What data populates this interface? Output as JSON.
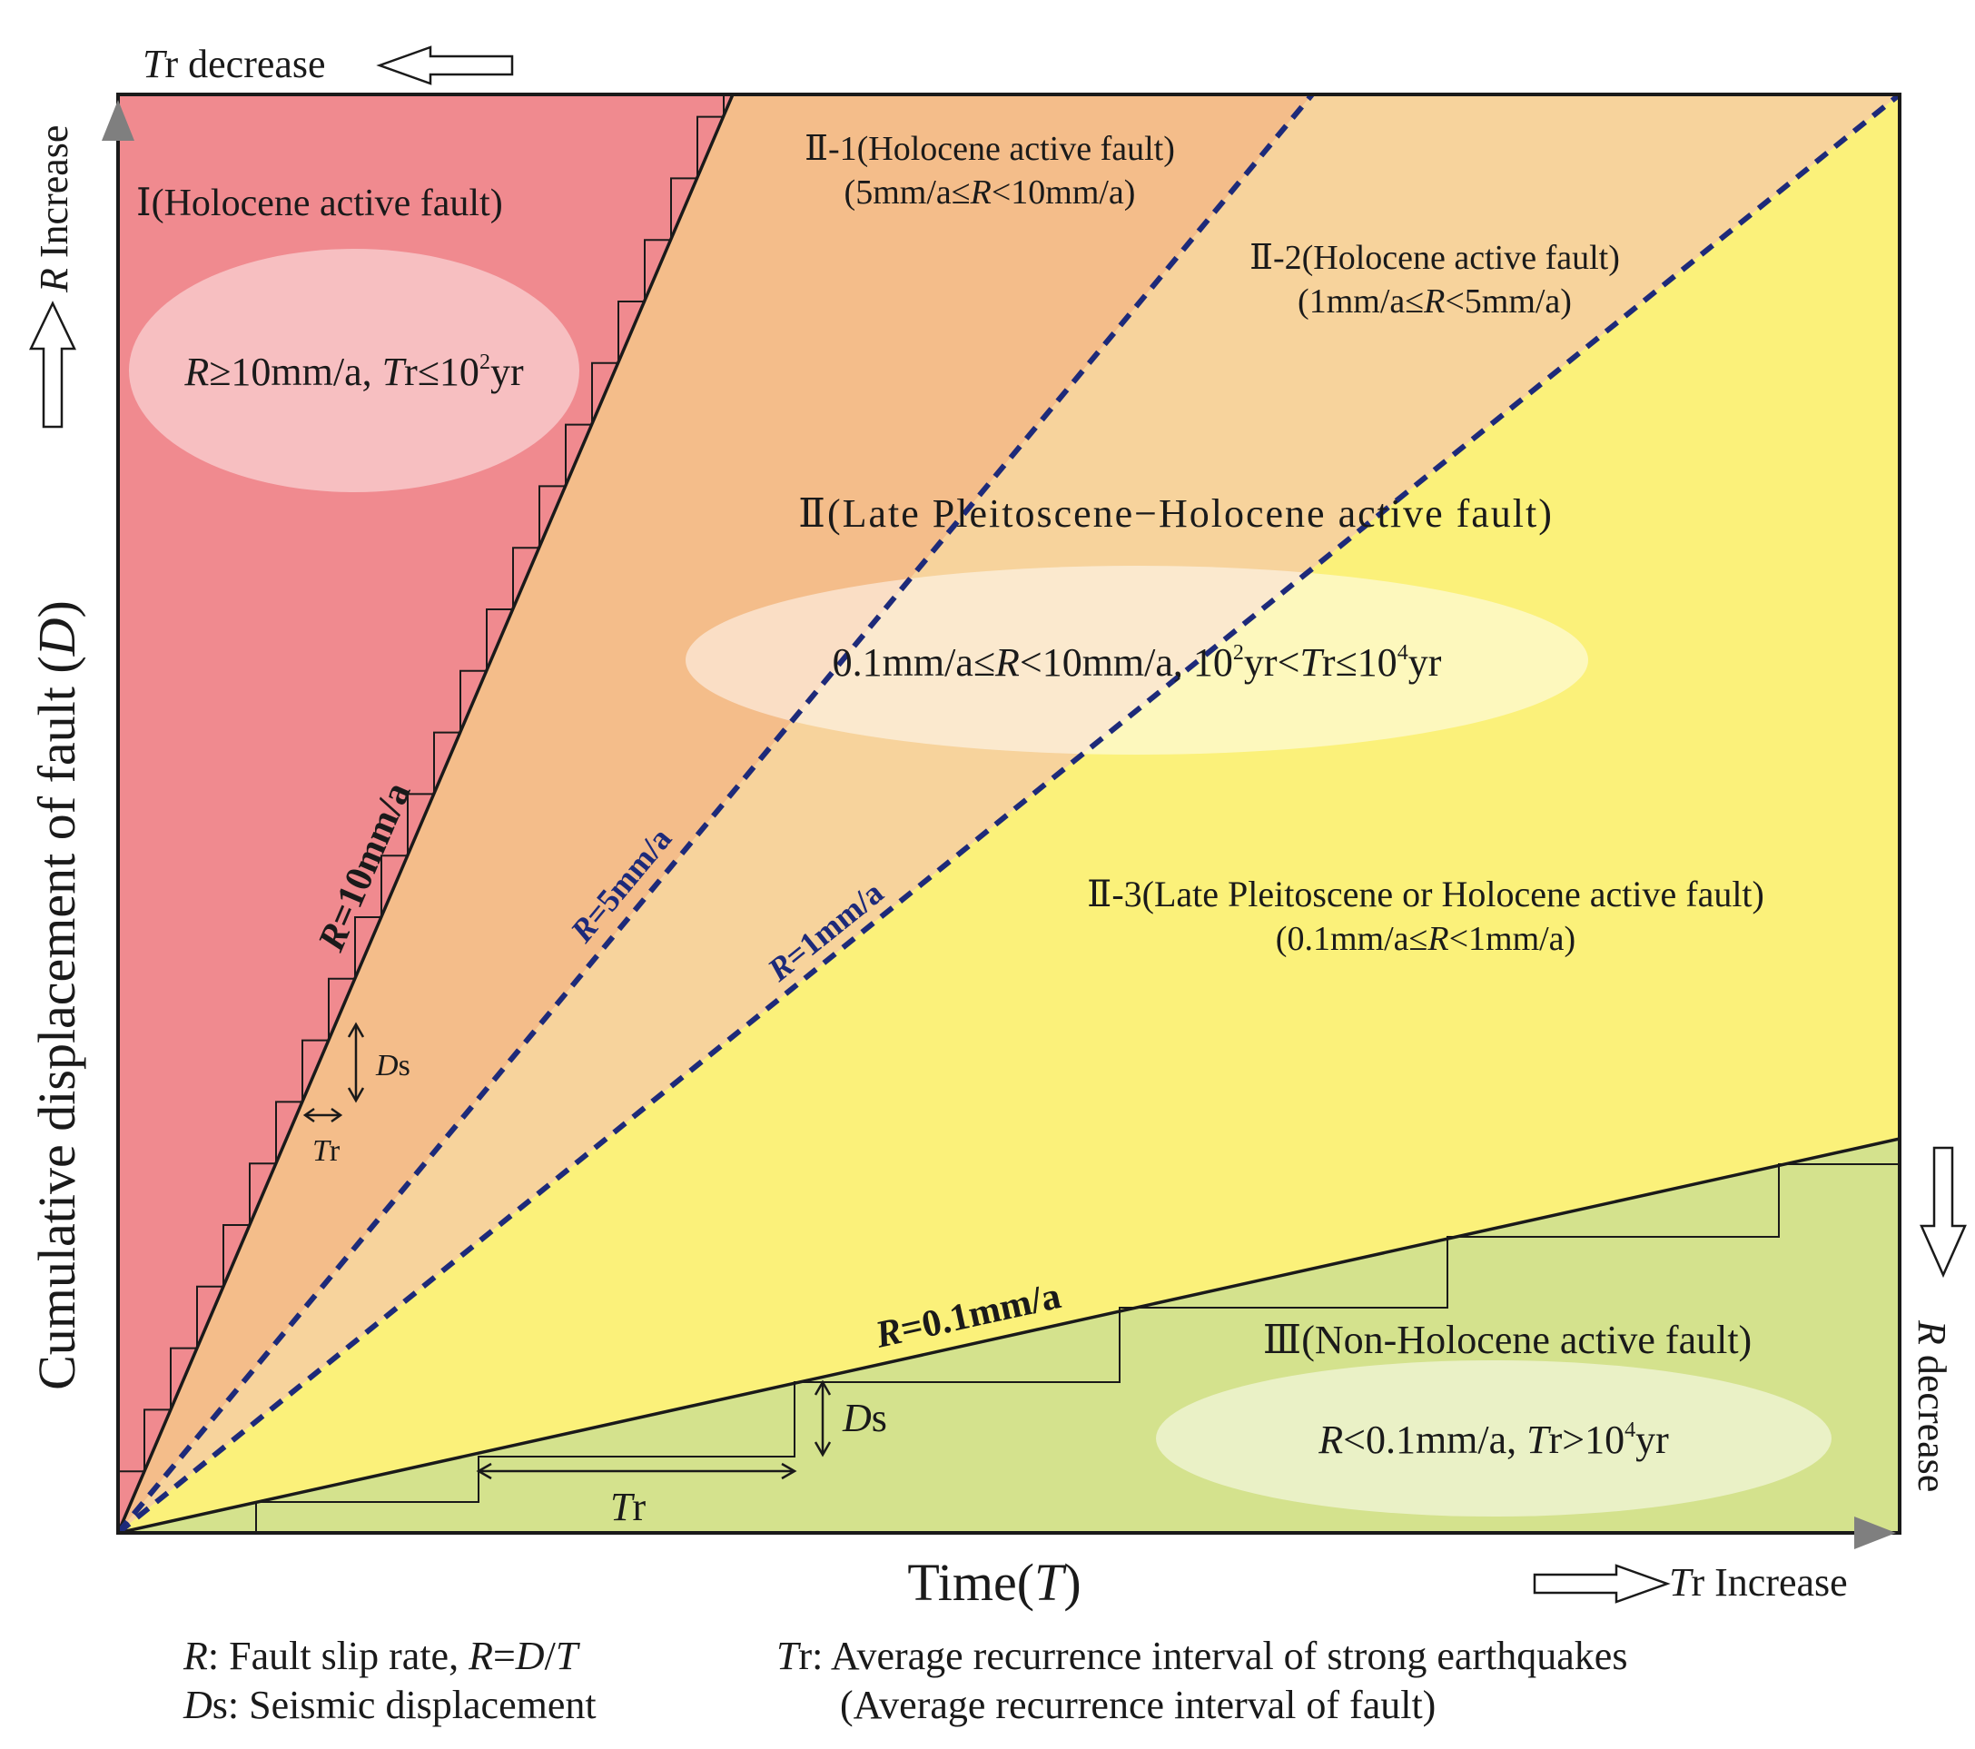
{
  "colors": {
    "zone_i": "#f08a8f",
    "zone_ii1": "#f4bd8a",
    "zone_ii2": "#f7d39c",
    "zone_ii3": "#fbf17a",
    "zone_iii": "#d4e28d",
    "dashed_line": "#1d2a7a",
    "ellipse_fill": "#ffffff",
    "arrow_gray": "#7f7f7f"
  },
  "axes": {
    "y_label_main": "Cumulative displacement of fault (",
    "y_label_var": "D",
    "y_label_end": ")",
    "x_label_main": "Time(",
    "x_label_var": "T",
    "x_label_end": ")"
  },
  "arrows": {
    "top_left": {
      "var": "T",
      "rest": "r decrease"
    },
    "left_up": {
      "var": "R",
      "rest": " Increase"
    },
    "right_down": {
      "var": "R",
      "rest": " decrease"
    },
    "bottom_right": {
      "var": "T",
      "rest": "r Increase"
    }
  },
  "zones": {
    "I": {
      "title": "Ⅰ(Holocene active fault)",
      "cond_r": "R",
      "cond_a": "≥10mm/a, ",
      "cond_t": "T",
      "cond_b": "r≤10",
      "cond_sup": "2",
      "cond_c": "yr"
    },
    "II1": {
      "title": "Ⅱ-1(Holocene active fault)",
      "range_a": "(5mm/a≤",
      "range_r": "R",
      "range_b": "<10mm/a)"
    },
    "II2": {
      "title": "Ⅱ-2(Holocene active fault)",
      "range_a": "(1mm/a≤",
      "range_r": "R",
      "range_b": "<5mm/a)"
    },
    "II": {
      "title": "Ⅱ(Late Pleitoscene−Holocene active fault)",
      "cond_a": "0.1mm/a≤",
      "cond_r": "R",
      "cond_b": "<10mm/a, 10",
      "cond_sup1": "2",
      "cond_c": "yr<",
      "cond_t": "T",
      "cond_d": "r≤10",
      "cond_sup2": "4",
      "cond_e": "yr"
    },
    "II3": {
      "title": "Ⅱ-3(Late Pleitoscene or Holocene active fault)",
      "range_a": "(0.1mm/a≤",
      "range_r": "R",
      "range_b": "<1mm/a)"
    },
    "III": {
      "title": "Ⅲ(Non-Holocene active fault)",
      "cond_r": "R",
      "cond_a": "<0.1mm/a, ",
      "cond_t": "T",
      "cond_b": "r>10",
      "cond_sup": "4",
      "cond_c": "yr"
    }
  },
  "rate_lines": {
    "r10": {
      "var": "R",
      "text": "=10mm/a",
      "rate": 10
    },
    "r5": {
      "var": "R",
      "text": "=5mm/a",
      "rate": 5
    },
    "r1": {
      "var": "R",
      "text": "=1mm/a",
      "rate": 1
    },
    "r01": {
      "var": "R",
      "text": "=0.1mm/a",
      "rate": 0.1
    }
  },
  "annotations": {
    "ds_steep": {
      "var": "D",
      "rest": "s"
    },
    "tr_steep": {
      "var": "T",
      "rest": "r"
    },
    "ds_shallow": {
      "var": "D",
      "rest": "s"
    },
    "tr_shallow": {
      "var": "T",
      "rest": "r"
    }
  },
  "legend": {
    "r_var": "R",
    "r_text_a": ": Fault slip rate, ",
    "r_var2": "R",
    "r_eq": "=",
    "r_var3": "D",
    "r_slash": "/",
    "r_var4": "T",
    "ds_var": "D",
    "ds_text": "s: Seismic displacement",
    "tr_var": "T",
    "tr_text": "r: Average recurrence interval of strong earthquakes",
    "tr_text2": "(Average recurrence interval of fault)"
  }
}
